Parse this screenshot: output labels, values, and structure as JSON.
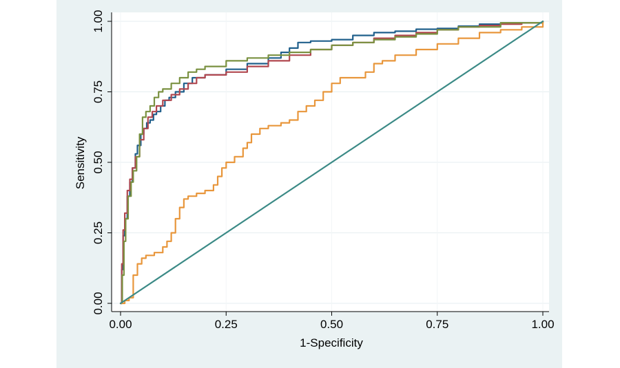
{
  "chart_data": {
    "type": "line",
    "title": "",
    "xlabel": "1-Specificity",
    "ylabel": "Sensitivity",
    "xlim": [
      0,
      1
    ],
    "ylim": [
      0,
      1
    ],
    "xticks": [
      0,
      0.25,
      0.5,
      0.75,
      1
    ],
    "xtick_labels": [
      "0.00",
      "0.25",
      "0.50",
      "0.75",
      "1.00"
    ],
    "yticks": [
      0,
      0.25,
      0.5,
      0.75,
      1
    ],
    "ytick_labels": [
      "0.00",
      "0.25",
      "0.50",
      "0.75",
      "1.00"
    ],
    "grid": true,
    "legend": "none",
    "series": [
      {
        "name": "ROC curve (blue)",
        "color": "#1f5f8b",
        "x": [
          0,
          0.003,
          0.006,
          0.01,
          0.016,
          0.022,
          0.028,
          0.035,
          0.04,
          0.048,
          0.055,
          0.062,
          0.07,
          0.078,
          0.085,
          0.095,
          0.105,
          0.115,
          0.13,
          0.15,
          0.17,
          0.2,
          0.25,
          0.3,
          0.35,
          0.38,
          0.4,
          0.42,
          0.45,
          0.5,
          0.55,
          0.6,
          0.65,
          0.7,
          0.75,
          0.8,
          0.85,
          0.9,
          1
        ],
        "y": [
          0,
          0.12,
          0.24,
          0.3,
          0.38,
          0.43,
          0.48,
          0.53,
          0.56,
          0.6,
          0.62,
          0.64,
          0.65,
          0.67,
          0.68,
          0.7,
          0.72,
          0.73,
          0.75,
          0.78,
          0.8,
          0.81,
          0.83,
          0.85,
          0.87,
          0.89,
          0.905,
          0.925,
          0.93,
          0.935,
          0.95,
          0.96,
          0.965,
          0.972,
          0.975,
          0.983,
          0.99,
          0.995,
          1
        ]
      },
      {
        "name": "ROC curve (red)",
        "color": "#b0474f",
        "x": [
          0,
          0.003,
          0.006,
          0.01,
          0.016,
          0.022,
          0.028,
          0.035,
          0.045,
          0.055,
          0.065,
          0.075,
          0.085,
          0.1,
          0.12,
          0.14,
          0.16,
          0.18,
          0.2,
          0.25,
          0.3,
          0.35,
          0.4,
          0.45,
          0.5,
          0.55,
          0.6,
          0.65,
          0.7,
          0.75,
          0.8,
          0.85,
          0.9,
          0.95,
          1
        ],
        "y": [
          0,
          0.14,
          0.26,
          0.32,
          0.4,
          0.44,
          0.48,
          0.52,
          0.58,
          0.62,
          0.66,
          0.68,
          0.7,
          0.72,
          0.74,
          0.76,
          0.78,
          0.8,
          0.81,
          0.82,
          0.84,
          0.86,
          0.88,
          0.9,
          0.915,
          0.925,
          0.94,
          0.95,
          0.96,
          0.97,
          0.98,
          0.985,
          0.99,
          0.995,
          1
        ]
      },
      {
        "name": "ROC curve (green)",
        "color": "#7a9140",
        "x": [
          0,
          0.004,
          0.008,
          0.012,
          0.018,
          0.025,
          0.03,
          0.038,
          0.045,
          0.052,
          0.06,
          0.07,
          0.08,
          0.09,
          0.1,
          0.12,
          0.14,
          0.16,
          0.18,
          0.2,
          0.25,
          0.3,
          0.35,
          0.4,
          0.45,
          0.5,
          0.55,
          0.6,
          0.65,
          0.7,
          0.75,
          0.8,
          0.9,
          1
        ],
        "y": [
          0,
          0.1,
          0.22,
          0.3,
          0.38,
          0.43,
          0.47,
          0.52,
          0.6,
          0.66,
          0.68,
          0.7,
          0.73,
          0.75,
          0.76,
          0.78,
          0.8,
          0.82,
          0.83,
          0.84,
          0.86,
          0.87,
          0.88,
          0.89,
          0.9,
          0.915,
          0.925,
          0.935,
          0.945,
          0.955,
          0.97,
          0.98,
          0.995,
          1
        ]
      },
      {
        "name": "ROC curve (orange)",
        "color": "#e8963b",
        "x": [
          0,
          0.01,
          0.02,
          0.03,
          0.04,
          0.05,
          0.06,
          0.08,
          0.1,
          0.11,
          0.12,
          0.13,
          0.14,
          0.15,
          0.16,
          0.18,
          0.2,
          0.22,
          0.23,
          0.24,
          0.25,
          0.27,
          0.29,
          0.3,
          0.31,
          0.33,
          0.35,
          0.38,
          0.4,
          0.42,
          0.44,
          0.46,
          0.48,
          0.5,
          0.52,
          0.55,
          0.58,
          0.6,
          0.62,
          0.65,
          0.7,
          0.75,
          0.8,
          0.85,
          0.9,
          0.95,
          1
        ],
        "y": [
          0,
          0.01,
          0.02,
          0.1,
          0.14,
          0.16,
          0.17,
          0.18,
          0.2,
          0.22,
          0.25,
          0.3,
          0.34,
          0.37,
          0.38,
          0.39,
          0.4,
          0.42,
          0.45,
          0.48,
          0.5,
          0.52,
          0.55,
          0.57,
          0.6,
          0.62,
          0.63,
          0.64,
          0.65,
          0.68,
          0.7,
          0.72,
          0.75,
          0.78,
          0.8,
          0.8,
          0.82,
          0.85,
          0.86,
          0.88,
          0.9,
          0.92,
          0.94,
          0.96,
          0.97,
          0.98,
          1
        ]
      },
      {
        "name": "Reference line",
        "color": "#3b8a86",
        "x": [
          0,
          1
        ],
        "y": [
          0,
          1
        ]
      }
    ]
  }
}
